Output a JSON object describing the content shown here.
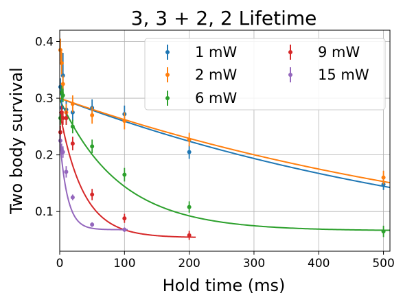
{
  "chart_data": {
    "type": "scatter",
    "title": "3, 3 + 2, 2 Lifetime",
    "xlabel": "Hold time (ms)",
    "ylabel": "Two body survival",
    "xlim": [
      0,
      510
    ],
    "ylim": [
      0.03,
      0.42
    ],
    "xticks": [
      0,
      100,
      200,
      300,
      400,
      500
    ],
    "yticks": [
      0.1,
      0.2,
      0.3,
      0.4
    ],
    "xtick_labels": [
      "0",
      "100",
      "200",
      "300",
      "400",
      "500"
    ],
    "ytick_labels": [
      "0.1",
      "0.2",
      "0.3",
      "0.4"
    ],
    "grid": true,
    "legend": "top-right",
    "series": [
      {
        "name": "1 mW",
        "color": "#1f77b4",
        "points": [
          {
            "x": 1,
            "y": 0.32,
            "err": 0.015
          },
          {
            "x": 3,
            "y": 0.283,
            "err": 0.015
          },
          {
            "x": 5,
            "y": 0.34,
            "err": 0.04
          },
          {
            "x": 10,
            "y": 0.28,
            "err": 0.015
          },
          {
            "x": 20,
            "y": 0.275,
            "err": 0.015
          },
          {
            "x": 50,
            "y": 0.283,
            "err": 0.015
          },
          {
            "x": 100,
            "y": 0.272,
            "err": 0.015
          },
          {
            "x": 200,
            "y": 0.205,
            "err": 0.012
          },
          {
            "x": 500,
            "y": 0.148,
            "err": 0.01
          }
        ],
        "fit": {
          "x0": 0,
          "x1": 510,
          "y0": 0.3,
          "A": 0.3,
          "tau": 685,
          "c": 0
        }
      },
      {
        "name": "2 mW",
        "color": "#ff7f0e",
        "points": [
          {
            "x": 1,
            "y": 0.385,
            "err": 0.02
          },
          {
            "x": 3,
            "y": 0.362,
            "err": 0.02
          },
          {
            "x": 5,
            "y": 0.325,
            "err": 0.015
          },
          {
            "x": 10,
            "y": 0.275,
            "err": 0.015
          },
          {
            "x": 20,
            "y": 0.29,
            "err": 0.015
          },
          {
            "x": 50,
            "y": 0.27,
            "err": 0.015
          },
          {
            "x": 100,
            "y": 0.26,
            "err": 0.015
          },
          {
            "x": 200,
            "y": 0.227,
            "err": 0.012
          },
          {
            "x": 500,
            "y": 0.16,
            "err": 0.012
          }
        ],
        "fit": {
          "A": 0.3,
          "tau": 742,
          "c": 0
        }
      },
      {
        "name": "6 mW",
        "color": "#2ca02c",
        "points": [
          {
            "x": 1,
            "y": 0.265,
            "err": 0.012
          },
          {
            "x": 3,
            "y": 0.31,
            "err": 0.012
          },
          {
            "x": 5,
            "y": 0.305,
            "err": 0.012
          },
          {
            "x": 10,
            "y": 0.265,
            "err": 0.012
          },
          {
            "x": 20,
            "y": 0.25,
            "err": 0.012
          },
          {
            "x": 50,
            "y": 0.215,
            "err": 0.012
          },
          {
            "x": 100,
            "y": 0.165,
            "err": 0.012
          },
          {
            "x": 200,
            "y": 0.108,
            "err": 0.01
          },
          {
            "x": 500,
            "y": 0.065,
            "err": 0.01
          }
        ],
        "fit": {
          "A": 0.232,
          "tau": 92,
          "c": 0.066
        }
      },
      {
        "name": "9 mW",
        "color": "#d62728",
        "points": [
          {
            "x": 1,
            "y": 0.24,
            "err": 0.012
          },
          {
            "x": 3,
            "y": 0.275,
            "err": 0.012
          },
          {
            "x": 5,
            "y": 0.265,
            "err": 0.012
          },
          {
            "x": 10,
            "y": 0.265,
            "err": 0.012
          },
          {
            "x": 20,
            "y": 0.22,
            "err": 0.012
          },
          {
            "x": 50,
            "y": 0.13,
            "err": 0.01
          },
          {
            "x": 100,
            "y": 0.088,
            "err": 0.008
          },
          {
            "x": 200,
            "y": 0.058,
            "err": 0.008
          }
        ],
        "fit": {
          "x1": 210,
          "A": 0.222,
          "tau": 36,
          "c": 0.054
        }
      },
      {
        "name": "15 mW",
        "color": "#9467bd",
        "points": [
          {
            "x": 1,
            "y": 0.225,
            "err": 0.01
          },
          {
            "x": 3,
            "y": 0.21,
            "err": 0.01
          },
          {
            "x": 5,
            "y": 0.205,
            "err": 0.01
          },
          {
            "x": 10,
            "y": 0.17,
            "err": 0.01
          },
          {
            "x": 20,
            "y": 0.125,
            "err": 0.005
          },
          {
            "x": 50,
            "y": 0.077,
            "err": 0.004
          },
          {
            "x": 100,
            "y": 0.068,
            "err": 0.004
          }
        ],
        "fit": {
          "x1": 105,
          "A": 0.16,
          "tau": 12,
          "c": 0.068
        }
      }
    ]
  }
}
